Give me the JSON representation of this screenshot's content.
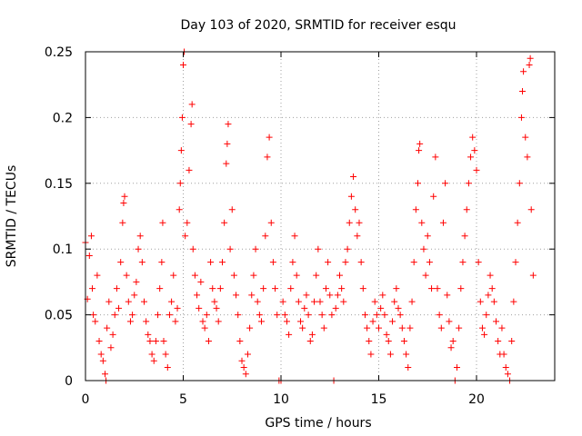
{
  "chart_data": {
    "type": "scatter",
    "title": "Day 103 of 2020, SRMTID for receiver esqu",
    "xlabel": "GPS time / hours",
    "ylabel": "SRMTID / TECUs",
    "xlim": [
      0,
      24
    ],
    "ylim": [
      0,
      0.25
    ],
    "x_ticks": [
      0,
      5,
      10,
      15,
      20
    ],
    "x_tick_labels": [
      "0",
      "5",
      "10",
      "15",
      "20"
    ],
    "y_ticks": [
      0,
      0.05,
      0.1,
      0.15,
      0.2,
      0.25
    ],
    "y_tick_labels": [
      "0",
      "0.05",
      "0.1",
      "0.15",
      "0.2",
      "0.25"
    ],
    "grid": true,
    "marker": "+",
    "series_color": "#ff0000",
    "series": [
      {
        "name": "SRMTID",
        "points": [
          [
            0.0,
            0.105
          ],
          [
            0.1,
            0.062
          ],
          [
            0.2,
            0.095
          ],
          [
            0.3,
            0.11
          ],
          [
            0.35,
            0.07
          ],
          [
            0.4,
            0.05
          ],
          [
            0.5,
            0.045
          ],
          [
            0.6,
            0.08
          ],
          [
            0.7,
            0.03
          ],
          [
            0.8,
            0.02
          ],
          [
            0.9,
            0.015
          ],
          [
            1.0,
            0.005
          ],
          [
            1.05,
            0.0
          ],
          [
            1.1,
            0.04
          ],
          [
            1.2,
            0.06
          ],
          [
            1.3,
            0.025
          ],
          [
            1.4,
            0.035
          ],
          [
            1.5,
            0.05
          ],
          [
            1.6,
            0.07
          ],
          [
            1.7,
            0.055
          ],
          [
            1.8,
            0.09
          ],
          [
            1.9,
            0.12
          ],
          [
            1.95,
            0.135
          ],
          [
            2.0,
            0.14
          ],
          [
            2.1,
            0.08
          ],
          [
            2.2,
            0.06
          ],
          [
            2.3,
            0.045
          ],
          [
            2.4,
            0.05
          ],
          [
            2.5,
            0.065
          ],
          [
            2.6,
            0.075
          ],
          [
            2.7,
            0.1
          ],
          [
            2.8,
            0.11
          ],
          [
            2.9,
            0.09
          ],
          [
            3.0,
            0.06
          ],
          [
            3.1,
            0.045
          ],
          [
            3.2,
            0.035
          ],
          [
            3.3,
            0.03
          ],
          [
            3.4,
            0.02
          ],
          [
            3.5,
            0.015
          ],
          [
            3.6,
            0.03
          ],
          [
            3.7,
            0.05
          ],
          [
            3.8,
            0.07
          ],
          [
            3.9,
            0.09
          ],
          [
            3.95,
            0.12
          ],
          [
            4.0,
            0.03
          ],
          [
            4.1,
            0.02
          ],
          [
            4.2,
            0.01
          ],
          [
            4.3,
            0.05
          ],
          [
            4.4,
            0.06
          ],
          [
            4.5,
            0.08
          ],
          [
            4.6,
            0.045
          ],
          [
            4.7,
            0.055
          ],
          [
            4.8,
            0.13
          ],
          [
            4.85,
            0.15
          ],
          [
            4.9,
            0.175
          ],
          [
            4.95,
            0.2
          ],
          [
            5.0,
            0.24
          ],
          [
            5.05,
            0.25
          ],
          [
            5.1,
            0.11
          ],
          [
            5.2,
            0.12
          ],
          [
            5.3,
            0.16
          ],
          [
            5.4,
            0.195
          ],
          [
            5.45,
            0.21
          ],
          [
            5.5,
            0.1
          ],
          [
            5.6,
            0.08
          ],
          [
            5.7,
            0.065
          ],
          [
            5.8,
            0.055
          ],
          [
            5.9,
            0.075
          ],
          [
            6.0,
            0.045
          ],
          [
            6.1,
            0.04
          ],
          [
            6.2,
            0.05
          ],
          [
            6.3,
            0.03
          ],
          [
            6.4,
            0.09
          ],
          [
            6.5,
            0.07
          ],
          [
            6.6,
            0.06
          ],
          [
            6.7,
            0.055
          ],
          [
            6.8,
            0.045
          ],
          [
            6.9,
            0.07
          ],
          [
            7.0,
            0.09
          ],
          [
            7.1,
            0.12
          ],
          [
            7.2,
            0.165
          ],
          [
            7.25,
            0.18
          ],
          [
            7.3,
            0.195
          ],
          [
            7.4,
            0.1
          ],
          [
            7.5,
            0.13
          ],
          [
            7.6,
            0.08
          ],
          [
            7.7,
            0.065
          ],
          [
            7.8,
            0.05
          ],
          [
            7.9,
            0.03
          ],
          [
            8.0,
            0.015
          ],
          [
            8.1,
            0.01
          ],
          [
            8.2,
            0.005
          ],
          [
            8.3,
            0.02
          ],
          [
            8.4,
            0.04
          ],
          [
            8.5,
            0.065
          ],
          [
            8.6,
            0.08
          ],
          [
            8.7,
            0.1
          ],
          [
            8.8,
            0.06
          ],
          [
            8.9,
            0.05
          ],
          [
            9.0,
            0.045
          ],
          [
            9.1,
            0.07
          ],
          [
            9.2,
            0.11
          ],
          [
            9.3,
            0.17
          ],
          [
            9.4,
            0.185
          ],
          [
            9.5,
            0.12
          ],
          [
            9.6,
            0.09
          ],
          [
            9.7,
            0.07
          ],
          [
            9.8,
            0.05
          ],
          [
            9.9,
            0.0
          ],
          [
            10.0,
            0.0
          ],
          [
            10.1,
            0.06
          ],
          [
            10.2,
            0.05
          ],
          [
            10.3,
            0.045
          ],
          [
            10.4,
            0.035
          ],
          [
            10.5,
            0.07
          ],
          [
            10.6,
            0.09
          ],
          [
            10.7,
            0.11
          ],
          [
            10.8,
            0.08
          ],
          [
            10.9,
            0.06
          ],
          [
            11.0,
            0.045
          ],
          [
            11.1,
            0.04
          ],
          [
            11.2,
            0.055
          ],
          [
            11.3,
            0.065
          ],
          [
            11.4,
            0.05
          ],
          [
            11.5,
            0.03
          ],
          [
            11.6,
            0.035
          ],
          [
            11.7,
            0.06
          ],
          [
            11.8,
            0.08
          ],
          [
            11.9,
            0.1
          ],
          [
            12.0,
            0.06
          ],
          [
            12.1,
            0.05
          ],
          [
            12.2,
            0.04
          ],
          [
            12.3,
            0.07
          ],
          [
            12.4,
            0.09
          ],
          [
            12.5,
            0.065
          ],
          [
            12.6,
            0.05
          ],
          [
            12.7,
            0.0
          ],
          [
            12.8,
            0.055
          ],
          [
            12.9,
            0.065
          ],
          [
            13.0,
            0.08
          ],
          [
            13.1,
            0.07
          ],
          [
            13.2,
            0.06
          ],
          [
            13.3,
            0.09
          ],
          [
            13.4,
            0.1
          ],
          [
            13.5,
            0.12
          ],
          [
            13.6,
            0.14
          ],
          [
            13.7,
            0.155
          ],
          [
            13.8,
            0.13
          ],
          [
            13.9,
            0.11
          ],
          [
            14.0,
            0.12
          ],
          [
            14.1,
            0.09
          ],
          [
            14.2,
            0.07
          ],
          [
            14.3,
            0.05
          ],
          [
            14.4,
            0.04
          ],
          [
            14.5,
            0.03
          ],
          [
            14.6,
            0.02
          ],
          [
            14.7,
            0.045
          ],
          [
            14.8,
            0.06
          ],
          [
            14.9,
            0.05
          ],
          [
            15.0,
            0.04
          ],
          [
            15.1,
            0.055
          ],
          [
            15.2,
            0.065
          ],
          [
            15.3,
            0.05
          ],
          [
            15.4,
            0.035
          ],
          [
            15.5,
            0.03
          ],
          [
            15.6,
            0.02
          ],
          [
            15.7,
            0.045
          ],
          [
            15.8,
            0.06
          ],
          [
            15.9,
            0.07
          ],
          [
            16.0,
            0.055
          ],
          [
            16.1,
            0.05
          ],
          [
            16.2,
            0.04
          ],
          [
            16.3,
            0.03
          ],
          [
            16.4,
            0.02
          ],
          [
            16.5,
            0.01
          ],
          [
            16.6,
            0.04
          ],
          [
            16.7,
            0.06
          ],
          [
            16.8,
            0.09
          ],
          [
            16.9,
            0.13
          ],
          [
            17.0,
            0.15
          ],
          [
            17.05,
            0.175
          ],
          [
            17.1,
            0.18
          ],
          [
            17.2,
            0.12
          ],
          [
            17.3,
            0.1
          ],
          [
            17.4,
            0.08
          ],
          [
            17.5,
            0.11
          ],
          [
            17.6,
            0.09
          ],
          [
            17.7,
            0.07
          ],
          [
            17.8,
            0.14
          ],
          [
            17.9,
            0.17
          ],
          [
            18.0,
            0.07
          ],
          [
            18.1,
            0.05
          ],
          [
            18.2,
            0.04
          ],
          [
            18.3,
            0.12
          ],
          [
            18.4,
            0.15
          ],
          [
            18.5,
            0.065
          ],
          [
            18.6,
            0.045
          ],
          [
            18.7,
            0.025
          ],
          [
            18.8,
            0.03
          ],
          [
            18.9,
            0.0
          ],
          [
            19.0,
            0.01
          ],
          [
            19.1,
            0.04
          ],
          [
            19.2,
            0.07
          ],
          [
            19.3,
            0.09
          ],
          [
            19.4,
            0.11
          ],
          [
            19.5,
            0.13
          ],
          [
            19.6,
            0.15
          ],
          [
            19.7,
            0.17
          ],
          [
            19.8,
            0.185
          ],
          [
            19.9,
            0.175
          ],
          [
            20.0,
            0.16
          ],
          [
            20.1,
            0.09
          ],
          [
            20.2,
            0.06
          ],
          [
            20.3,
            0.04
          ],
          [
            20.4,
            0.035
          ],
          [
            20.5,
            0.05
          ],
          [
            20.6,
            0.065
          ],
          [
            20.7,
            0.08
          ],
          [
            20.8,
            0.07
          ],
          [
            20.9,
            0.06
          ],
          [
            21.0,
            0.045
          ],
          [
            21.1,
            0.03
          ],
          [
            21.2,
            0.02
          ],
          [
            21.3,
            0.04
          ],
          [
            21.4,
            0.02
          ],
          [
            21.5,
            0.01
          ],
          [
            21.6,
            0.005
          ],
          [
            21.7,
            0.0
          ],
          [
            21.8,
            0.03
          ],
          [
            21.9,
            0.06
          ],
          [
            22.0,
            0.09
          ],
          [
            22.1,
            0.12
          ],
          [
            22.2,
            0.15
          ],
          [
            22.3,
            0.2
          ],
          [
            22.35,
            0.22
          ],
          [
            22.4,
            0.235
          ],
          [
            22.5,
            0.185
          ],
          [
            22.6,
            0.17
          ],
          [
            22.7,
            0.24
          ],
          [
            22.75,
            0.245
          ],
          [
            22.8,
            0.13
          ],
          [
            22.9,
            0.08
          ]
        ]
      }
    ]
  }
}
